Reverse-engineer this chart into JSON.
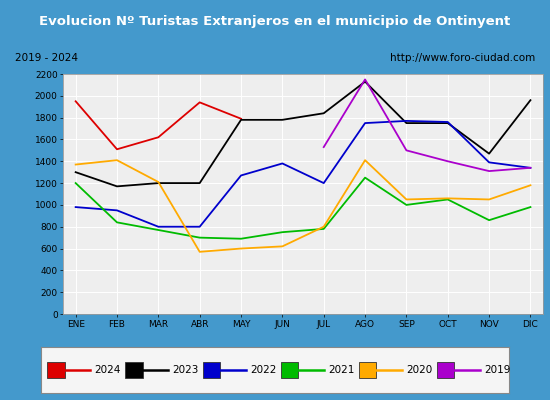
{
  "title": "Evolucion Nº Turistas Extranjeros en el municipio de Ontinyent",
  "subtitle_left": "2019 - 2024",
  "subtitle_right": "http://www.foro-ciudad.com",
  "months": [
    "ENE",
    "FEB",
    "MAR",
    "ABR",
    "MAY",
    "JUN",
    "JUL",
    "AGO",
    "SEP",
    "OCT",
    "NOV",
    "DIC"
  ],
  "series": {
    "2024": [
      1950,
      1510,
      1620,
      1940,
      1790,
      null,
      null,
      null,
      null,
      null,
      null,
      null
    ],
    "2023": [
      1300,
      1170,
      1200,
      1200,
      1780,
      1780,
      1840,
      2130,
      1750,
      1750,
      1470,
      1960
    ],
    "2022": [
      980,
      950,
      800,
      800,
      1270,
      1380,
      1200,
      1750,
      1770,
      1760,
      1390,
      1340
    ],
    "2021": [
      1200,
      840,
      770,
      700,
      690,
      750,
      780,
      1250,
      1000,
      1050,
      860,
      980
    ],
    "2020": [
      1370,
      1410,
      1210,
      570,
      600,
      620,
      800,
      1410,
      1050,
      1060,
      1050,
      1180
    ],
    "2019": [
      null,
      null,
      null,
      null,
      null,
      null,
      1530,
      2150,
      1500,
      1400,
      1310,
      1340
    ]
  },
  "colors": {
    "2024": "#dd0000",
    "2023": "#000000",
    "2022": "#0000cc",
    "2021": "#00bb00",
    "2020": "#ffaa00",
    "2019": "#aa00cc"
  },
  "ylim": [
    0,
    2200
  ],
  "yticks": [
    0,
    200,
    400,
    600,
    800,
    1000,
    1200,
    1400,
    1600,
    1800,
    2000,
    2200
  ],
  "title_bg": "#4499cc",
  "title_color": "#ffffff",
  "subtitle_bg": "#e8e8e8",
  "subtitle_border": "#aaaaaa",
  "plot_bg": "#eeeeee",
  "grid_color": "#ffffff",
  "legend_border": "#888888"
}
